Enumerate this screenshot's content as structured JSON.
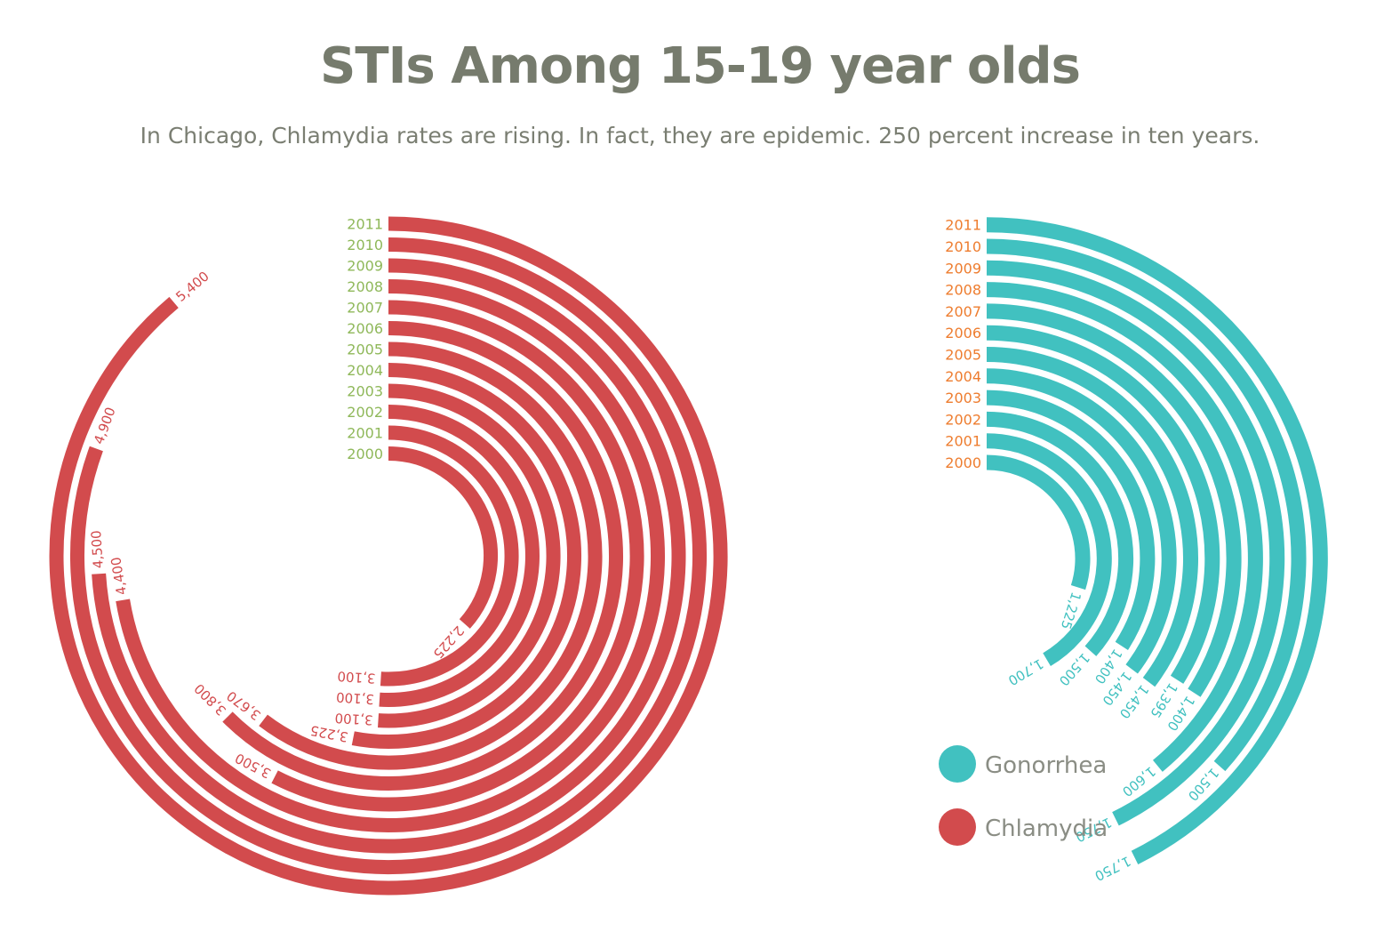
{
  "title": "STIs Among 15-19 year olds",
  "subtitle": "In Chicago, Chlamydia rates are rising. In fact, they are epidemic. 250 percent increase in ten years.",
  "colors": {
    "chlamydia": "#d24b4d",
    "gonorrhea": "#41c1c0",
    "chlamydia_years": "#8fb85a",
    "gonorrhea_years": "#ee7d2f",
    "text": "#767b6d"
  },
  "chart_data": [
    {
      "type": "radial-bar",
      "series": "Chlamydia",
      "years": [
        "2000",
        "2001",
        "2002",
        "2003",
        "2004",
        "2005",
        "2006",
        "2007",
        "2008",
        "2009",
        "2010",
        "2011"
      ],
      "values": [
        2225,
        3100,
        3100,
        3100,
        3225,
        3670,
        3800,
        3500,
        4400,
        4500,
        4900,
        5400
      ],
      "value_labels": [
        "2,225",
        "3,100",
        "3,100",
        "3,100",
        "3,225",
        "3,670",
        "3,800",
        "3,500",
        "4,400",
        "4,500",
        "4,900",
        "5,400"
      ]
    },
    {
      "type": "radial-bar",
      "series": "Gonorrhea",
      "years": [
        "2000",
        "2001",
        "2002",
        "2003",
        "2004",
        "2005",
        "2006",
        "2007",
        "2008",
        "2009",
        "2010",
        "2011"
      ],
      "values": [
        1225,
        1700,
        1500,
        1400,
        1450,
        1450,
        1395,
        1400,
        1600,
        1750,
        1500,
        1750
      ],
      "value_labels": [
        "1,225",
        "1,700",
        "1,500",
        "1,400",
        "1,450",
        "1,450",
        "1,395",
        "1,400",
        "1,600",
        "1,750",
        "1,500",
        "1,750"
      ]
    }
  ],
  "legend": [
    {
      "label": "Gonorrhea",
      "color": "#41c1c0"
    },
    {
      "label": "Chlamydia",
      "color": "#d24b4d"
    }
  ]
}
